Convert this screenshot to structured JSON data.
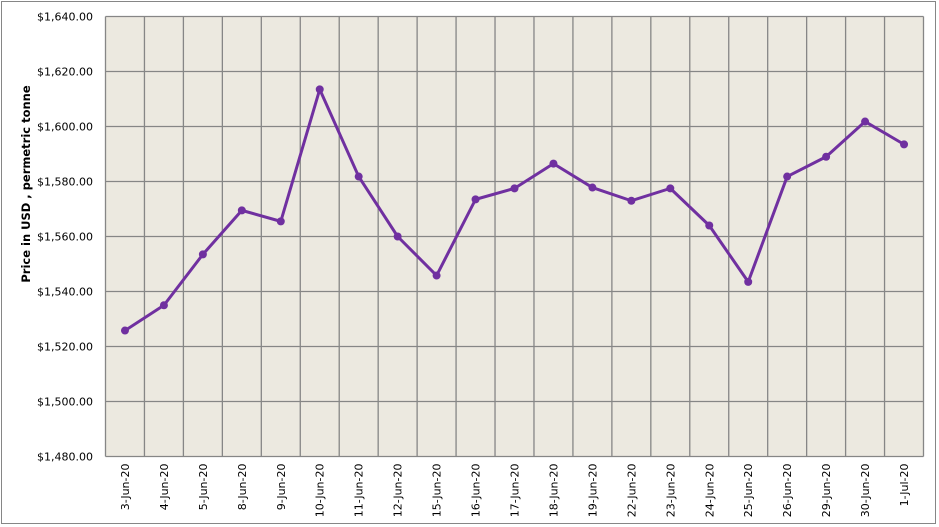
{
  "chart_data": {
    "type": "line",
    "title": "",
    "xlabel": "",
    "ylabel": "Price in USD , permetric tonne",
    "ylim": [
      1480,
      1640
    ],
    "y_ticks": [
      1480,
      1500,
      1520,
      1540,
      1560,
      1580,
      1600,
      1620,
      1640
    ],
    "y_tick_labels": [
      "$1,480.00",
      "$1,500.00",
      "$1,520.00",
      "$1,540.00",
      "$1,560.00",
      "$1,580.00",
      "$1,600.00",
      "$1,620.00",
      "$1,640.00"
    ],
    "grid": true,
    "legend": null,
    "categories": [
      "3-Jun-20",
      "4-Jun-20",
      "5-Jun-20",
      "8-Jun-20",
      "9-Jun-20",
      "10-Jun-20",
      "11-Jun-20",
      "12-Jun-20",
      "15-Jun-20",
      "16-Jun-20",
      "17-Jun-20",
      "18-Jun-20",
      "19-Jun-20",
      "22-Jun-20",
      "23-Jun-20",
      "24-Jun-20",
      "25-Jun-20",
      "26-Jun-20",
      "29-Jun-20",
      "30-Jun-20",
      "1-Jul-20"
    ],
    "series": [
      {
        "name": "Price",
        "color": "#7030A0",
        "values": [
          1525.8,
          1535.0,
          1553.5,
          1569.5,
          1565.5,
          1613.5,
          1581.8,
          1560.0,
          1545.8,
          1573.5,
          1577.5,
          1586.5,
          1577.8,
          1573.0,
          1577.5,
          1564.0,
          1543.5,
          1581.8,
          1589.0,
          1601.8,
          1593.5
        ]
      }
    ]
  },
  "colors": {
    "plot_background": "#ECE9E0",
    "grid": "#868686",
    "line": "#7030A0"
  }
}
